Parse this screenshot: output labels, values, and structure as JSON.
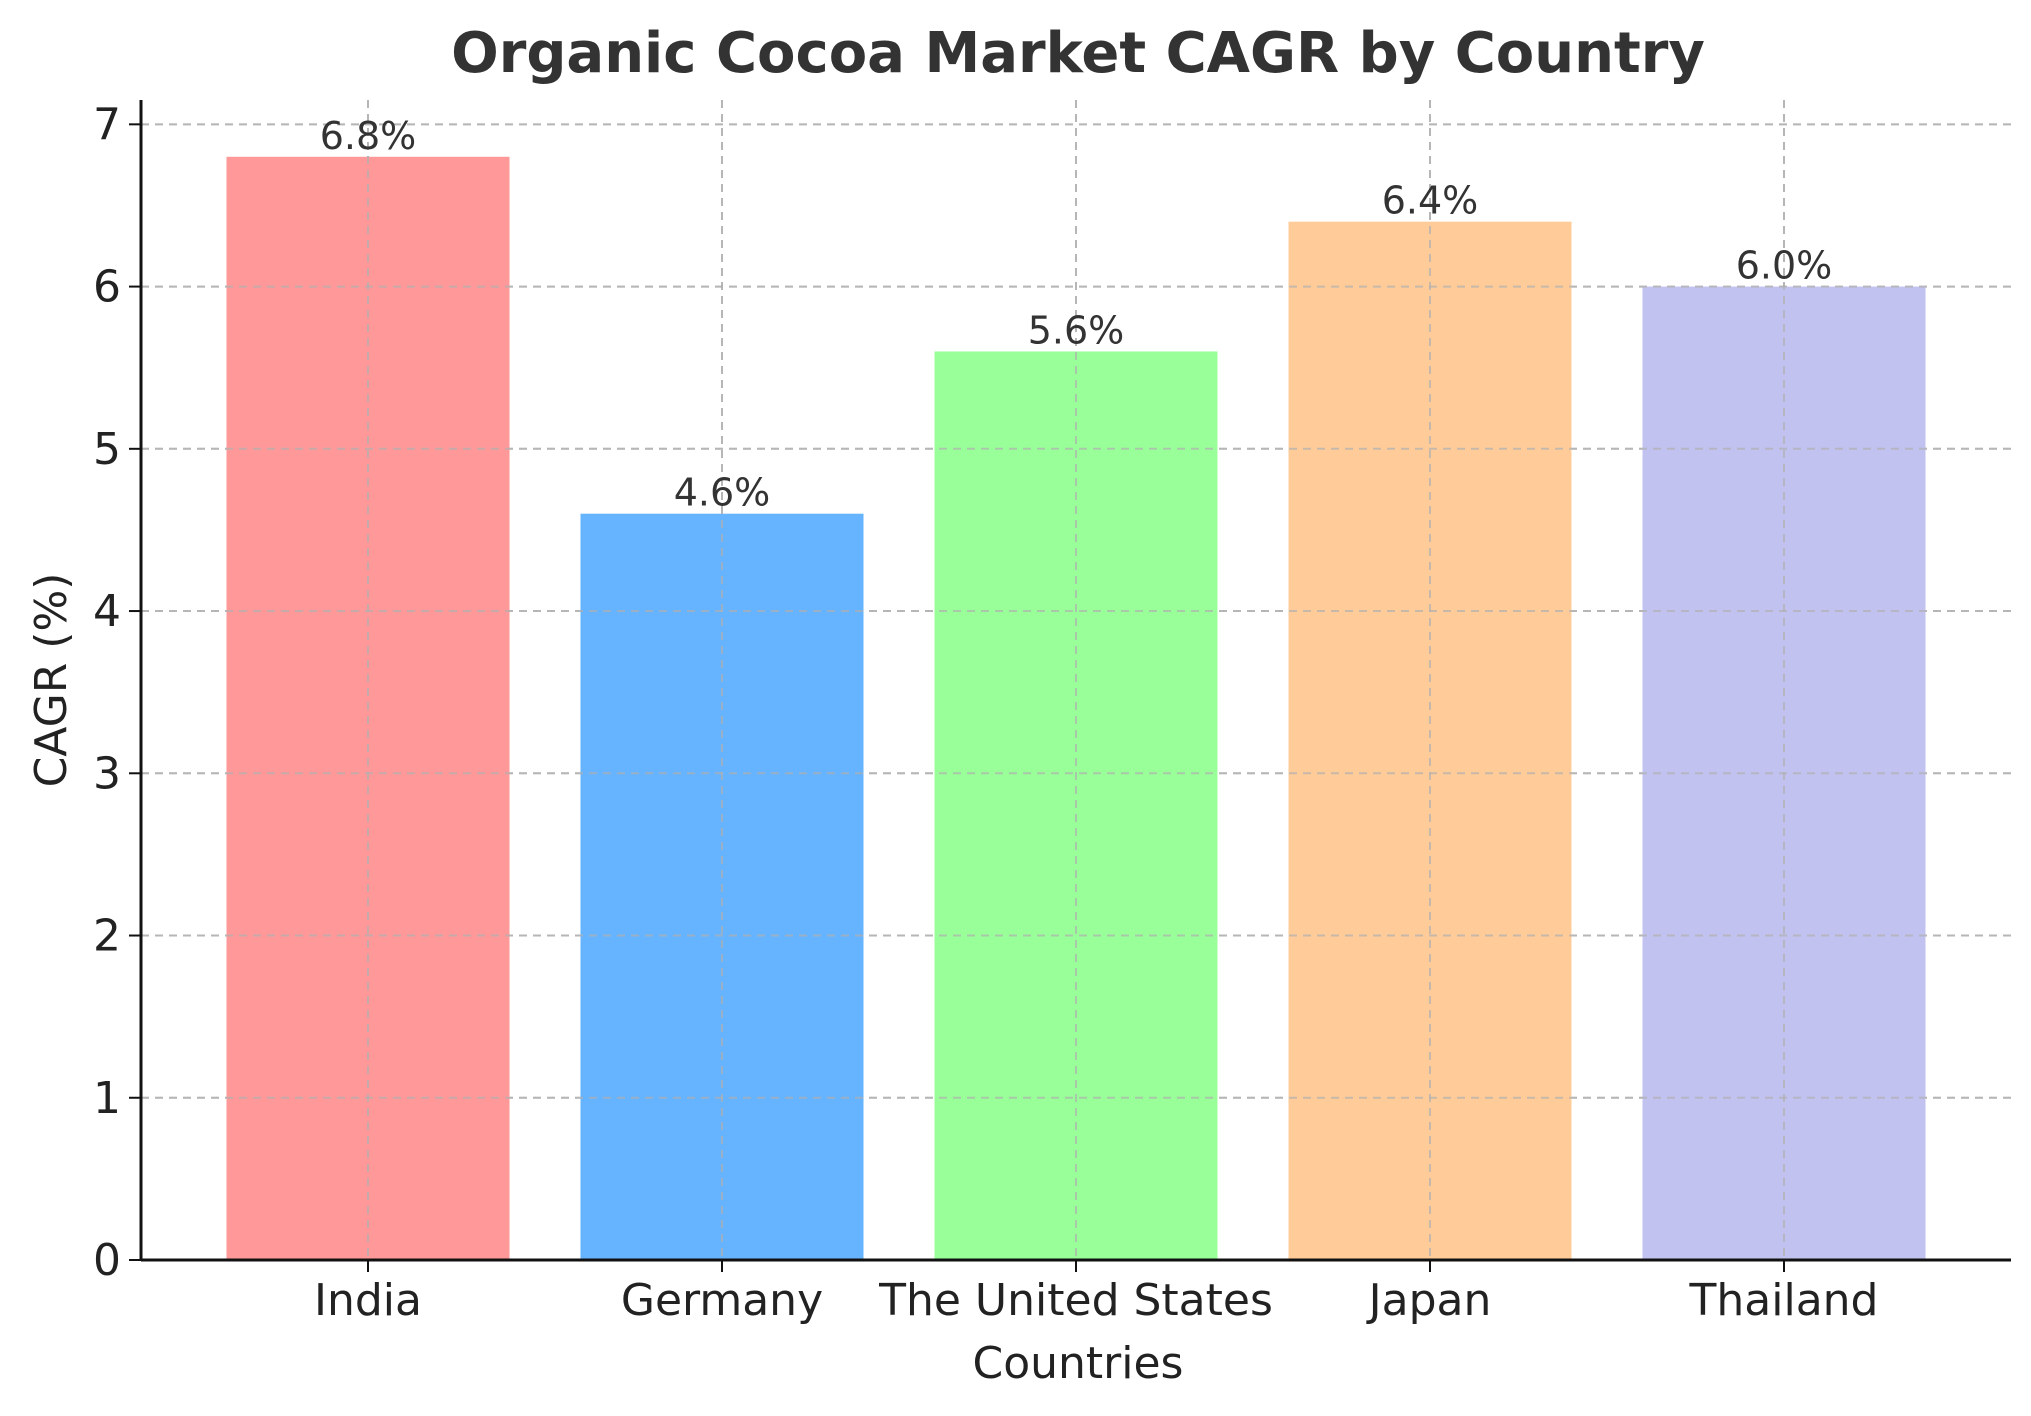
{
  "chart_data": {
    "type": "bar",
    "title": "Organic Cocoa Market CAGR by Country",
    "xlabel": "Countries",
    "ylabel": "CAGR (%)",
    "categories": [
      "India",
      "Germany",
      "The United States",
      "Japan",
      "Thailand"
    ],
    "values": [
      6.8,
      4.6,
      5.6,
      6.4,
      6.0
    ],
    "data_labels": [
      "6.8%",
      "4.6%",
      "5.6%",
      "6.4%",
      "6.0%"
    ],
    "colors": [
      "#ff9999",
      "#66b3ff",
      "#99ff99",
      "#ffcc99",
      "#c2c2f0"
    ],
    "ylim": [
      0,
      7.15
    ],
    "yticks": [
      0,
      1,
      2,
      3,
      4,
      5,
      6,
      7
    ],
    "grid": true
  }
}
